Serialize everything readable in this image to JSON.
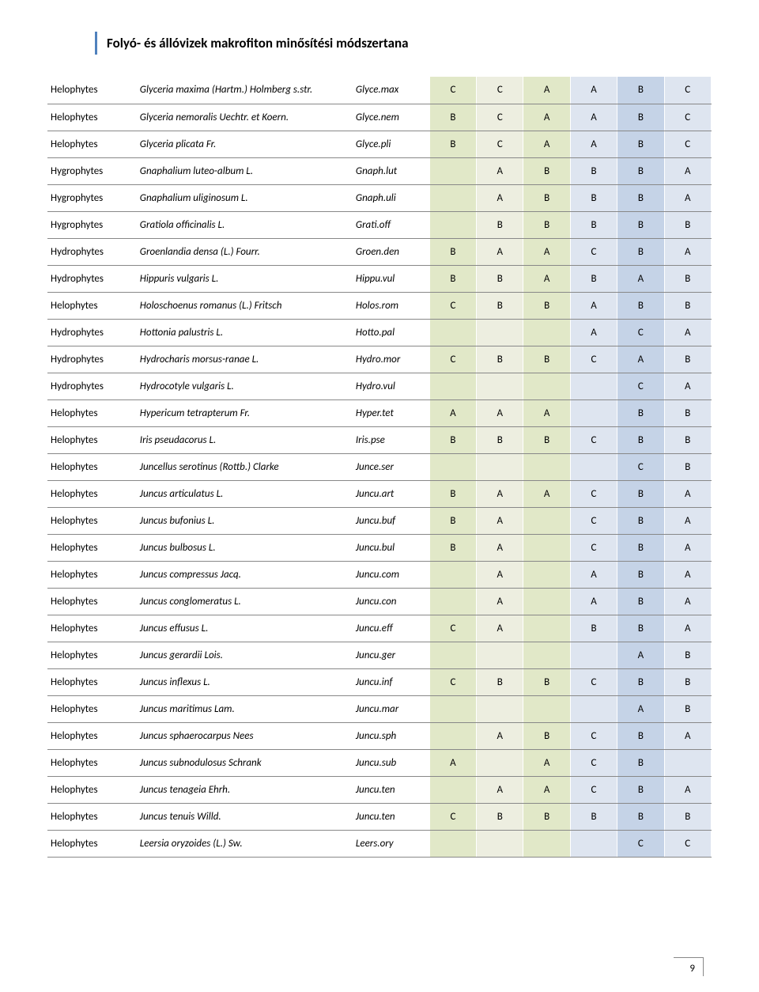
{
  "header": {
    "title": "Folyó- és állóvizek makrofiton minősítési módszertana"
  },
  "page_number": "9",
  "grade_column_colors": [
    "#e1e8c8",
    "#edeee0",
    "#e1e8c8",
    "#dee5f0",
    "#c5d3e7",
    "#dee5f0"
  ],
  "rows": [
    {
      "type": "Helophytes",
      "species": "Glyceria maxima (Hartm.) Holmberg s.str.",
      "code": "Glyce.max",
      "grades": [
        "C",
        "C",
        "A",
        "A",
        "B",
        "C"
      ]
    },
    {
      "type": "Helophytes",
      "species": "Glyceria nemoralis Uechtr. et Koern.",
      "code": "Glyce.nem",
      "grades": [
        "B",
        "C",
        "A",
        "A",
        "B",
        "C"
      ]
    },
    {
      "type": "Helophytes",
      "species": "Glyceria plicata Fr.",
      "code": "Glyce.pli",
      "grades": [
        "B",
        "C",
        "A",
        "A",
        "B",
        "C"
      ]
    },
    {
      "type": "Hygrophytes",
      "species": "Gnaphalium luteo-album L.",
      "code": "Gnaph.lut",
      "grades": [
        "",
        "A",
        "B",
        "B",
        "B",
        "A"
      ]
    },
    {
      "type": "Hygrophytes",
      "species": "Gnaphalium uliginosum L.",
      "code": "Gnaph.uli",
      "grades": [
        "",
        "A",
        "B",
        "B",
        "B",
        "A"
      ]
    },
    {
      "type": "Hygrophytes",
      "species": "Gratiola officinalis L.",
      "code": "Grati.off",
      "grades": [
        "",
        "B",
        "B",
        "B",
        "B",
        "B"
      ]
    },
    {
      "type": "Hydrophytes",
      "species": "Groenlandia densa (L.) Fourr.",
      "code": "Groen.den",
      "grades": [
        "B",
        "A",
        "A",
        "C",
        "B",
        "A"
      ]
    },
    {
      "type": "Hydrophytes",
      "species": "Hippuris vulgaris L.",
      "code": "Hippu.vul",
      "grades": [
        "B",
        "B",
        "A",
        "B",
        "A",
        "B"
      ]
    },
    {
      "type": "Helophytes",
      "species": "Holoschoenus romanus (L.) Fritsch",
      "code": "Holos.rom",
      "grades": [
        "C",
        "B",
        "B",
        "A",
        "B",
        "B"
      ]
    },
    {
      "type": "Hydrophytes",
      "species": "Hottonia palustris L.",
      "code": "Hotto.pal",
      "grades": [
        "",
        "",
        "",
        "A",
        "C",
        "A"
      ]
    },
    {
      "type": "Hydrophytes",
      "species": "Hydrocharis morsus-ranae L.",
      "code": "Hydro.mor",
      "grades": [
        "C",
        "B",
        "B",
        "C",
        "A",
        "B"
      ]
    },
    {
      "type": "Hydrophytes",
      "species": "Hydrocotyle vulgaris L.",
      "code": "Hydro.vul",
      "grades": [
        "",
        "",
        "",
        "",
        "C",
        "A"
      ]
    },
    {
      "type": "Helophytes",
      "species": "Hypericum tetrapterum Fr.",
      "code": "Hyper.tet",
      "grades": [
        "A",
        "A",
        "A",
        "",
        "B",
        "B"
      ]
    },
    {
      "type": "Helophytes",
      "species": "Iris pseudacorus L.",
      "code": "Iris.pse",
      "grades": [
        "B",
        "B",
        "B",
        "C",
        "B",
        "B"
      ]
    },
    {
      "type": "Helophytes",
      "species": "Juncellus serotinus (Rottb.) Clarke",
      "code": "Junce.ser",
      "grades": [
        "",
        "",
        "",
        "",
        "C",
        "B"
      ]
    },
    {
      "type": "Helophytes",
      "species": "Juncus articulatus L.",
      "code": "Juncu.art",
      "grades": [
        "B",
        "A",
        "A",
        "C",
        "B",
        "A"
      ]
    },
    {
      "type": "Helophytes",
      "species": "Juncus bufonius L.",
      "code": "Juncu.buf",
      "grades": [
        "B",
        "A",
        "",
        "C",
        "B",
        "A"
      ]
    },
    {
      "type": "Helophytes",
      "species": "Juncus bulbosus L.",
      "code": "Juncu.bul",
      "grades": [
        "B",
        "A",
        "",
        "C",
        "B",
        "A"
      ]
    },
    {
      "type": "Helophytes",
      "species": "Juncus compressus Jacq.",
      "code": "Juncu.com",
      "grades": [
        "",
        "A",
        "",
        "A",
        "B",
        "A"
      ]
    },
    {
      "type": "Helophytes",
      "species": "Juncus conglomeratus L.",
      "code": "Juncu.con",
      "grades": [
        "",
        "A",
        "",
        "A",
        "B",
        "A"
      ]
    },
    {
      "type": "Helophytes",
      "species": "Juncus effusus L.",
      "code": "Juncu.eff",
      "grades": [
        "C",
        "A",
        "",
        "B",
        "B",
        "A"
      ]
    },
    {
      "type": "Helophytes",
      "species": "Juncus gerardii Lois.",
      "code": "Juncu.ger",
      "grades": [
        "",
        "",
        "",
        "",
        "A",
        "B"
      ]
    },
    {
      "type": "Helophytes",
      "species": "Juncus inflexus L.",
      "code": "Juncu.inf",
      "grades": [
        "C",
        "B",
        "B",
        "C",
        "B",
        "B"
      ]
    },
    {
      "type": "Helophytes",
      "species": "Juncus maritimus Lam.",
      "code": "Juncu.mar",
      "grades": [
        "",
        "",
        "",
        "",
        "A",
        "B"
      ]
    },
    {
      "type": "Helophytes",
      "species": "Juncus sphaerocarpus Nees",
      "code": "Juncu.sph",
      "grades": [
        "",
        "A",
        "B",
        "C",
        "B",
        "A"
      ]
    },
    {
      "type": "Helophytes",
      "species": "Juncus subnodulosus Schrank",
      "code": "Juncu.sub",
      "grades": [
        "A",
        "",
        "A",
        "C",
        "B",
        ""
      ]
    },
    {
      "type": "Helophytes",
      "species": "Juncus tenageia Ehrh.",
      "code": "Juncu.ten",
      "grades": [
        "",
        "A",
        "A",
        "C",
        "B",
        "A"
      ]
    },
    {
      "type": "Helophytes",
      "species": "Juncus tenuis Willd.",
      "code": "Juncu.ten",
      "grades": [
        "C",
        "B",
        "B",
        "B",
        "B",
        "B"
      ]
    },
    {
      "type": "Helophytes",
      "species": "Leersia oryzoides (L.) Sw.",
      "code": "Leers.ory",
      "grades": [
        "",
        "",
        "",
        "",
        "C",
        "C"
      ]
    }
  ]
}
